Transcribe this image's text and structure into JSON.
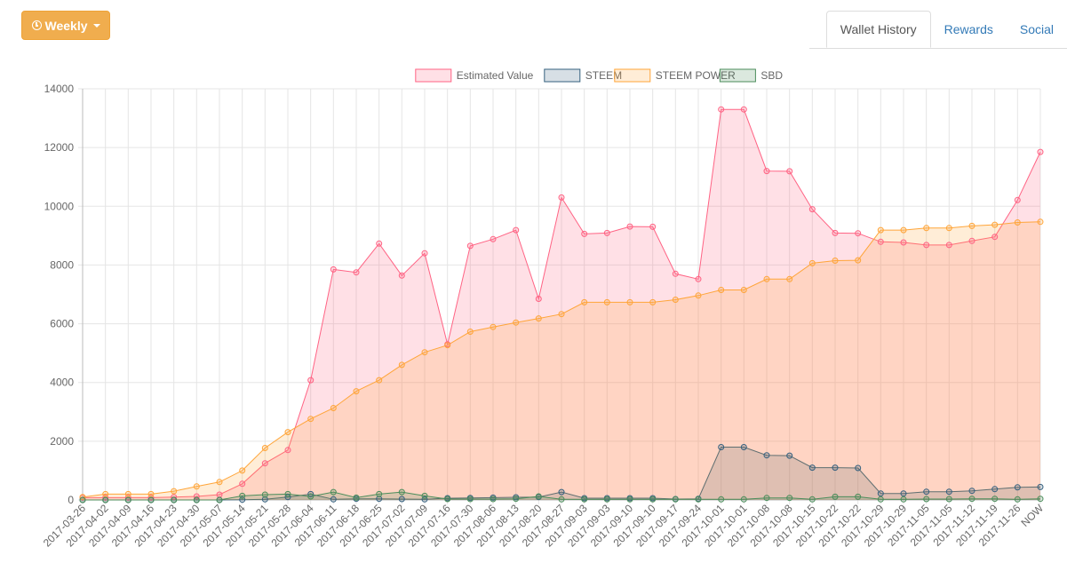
{
  "toolbar": {
    "period_label": "Weekly"
  },
  "tabs": [
    {
      "label": "Wallet History",
      "active": true
    },
    {
      "label": "Rewards",
      "active": false
    },
    {
      "label": "Social",
      "active": false
    }
  ],
  "chart_data": {
    "type": "area",
    "title": "",
    "xlabel": "",
    "ylabel": "",
    "ylim": [
      0,
      14000
    ],
    "yticks": [
      0,
      2000,
      4000,
      6000,
      8000,
      10000,
      12000,
      14000
    ],
    "grid": true,
    "legend_position": "top-center",
    "categories": [
      "2017-03-26",
      "2017-04-02",
      "2017-04-09",
      "2017-04-16",
      "2017-04-23",
      "2017-04-30",
      "2017-05-07",
      "2017-05-14",
      "2017-05-21",
      "2017-05-28",
      "2017-06-04",
      "2017-06-11",
      "2017-06-18",
      "2017-06-25",
      "2017-07-02",
      "2017-07-09",
      "2017-07-16",
      "2017-07-30",
      "2017-08-06",
      "2017-08-13",
      "2017-08-20",
      "2017-08-27",
      "2017-09-03",
      "2017-09-03",
      "2017-09-10",
      "2017-09-10",
      "2017-09-17",
      "2017-09-24",
      "2017-10-01",
      "2017-10-01",
      "2017-10-08",
      "2017-10-08",
      "2017-10-15",
      "2017-10-22",
      "2017-10-22",
      "2017-10-29",
      "2017-10-29",
      "2017-11-05",
      "2017-11-05",
      "2017-11-12",
      "2017-11-19",
      "2017-11-26",
      "NOW"
    ],
    "series": [
      {
        "name": "Estimated Value",
        "stroke": "#ff6384",
        "fill": "rgba(255,99,132,0.2)",
        "values": [
          80,
          80,
          80,
          80,
          100,
          120,
          180,
          550,
          1250,
          1700,
          4080,
          7850,
          7750,
          8730,
          7640,
          8400,
          5300,
          8650,
          8880,
          9190,
          6850,
          10300,
          9060,
          9090,
          9310,
          9300,
          7700,
          7520,
          13300,
          13300,
          11200,
          11190,
          9900,
          9090,
          9080,
          8790,
          8770,
          8680,
          8680,
          8820,
          8960,
          10210,
          11850
        ]
      },
      {
        "name": "STEEM",
        "stroke": "#36617f",
        "fill": "rgba(54,97,127,0.2)",
        "values": [
          0,
          0,
          0,
          0,
          0,
          0,
          0,
          10,
          20,
          100,
          200,
          20,
          40,
          40,
          30,
          20,
          60,
          70,
          80,
          90,
          100,
          270,
          60,
          60,
          60,
          60,
          30,
          40,
          1800,
          1800,
          1520,
          1510,
          1100,
          1100,
          1090,
          220,
          220,
          280,
          280,
          310,
          370,
          430,
          440
        ]
      },
      {
        "name": "STEEM POWER",
        "stroke": "#ffa539",
        "fill": "rgba(255,165,57,0.2)",
        "values": [
          100,
          200,
          200,
          200,
          300,
          460,
          610,
          1000,
          1770,
          2310,
          2760,
          3130,
          3700,
          4080,
          4600,
          5030,
          5270,
          5730,
          5890,
          6040,
          6180,
          6330,
          6730,
          6730,
          6730,
          6730,
          6820,
          6960,
          7150,
          7150,
          7520,
          7520,
          8060,
          8150,
          8160,
          9190,
          9190,
          9260,
          9260,
          9330,
          9370,
          9450,
          9470
        ]
      },
      {
        "name": "SBD",
        "stroke": "#4b8d5b",
        "fill": "rgba(75,141,91,0.2)",
        "values": [
          0,
          0,
          0,
          0,
          0,
          0,
          0,
          140,
          180,
          200,
          120,
          270,
          80,
          200,
          270,
          140,
          30,
          30,
          30,
          40,
          120,
          20,
          20,
          20,
          20,
          20,
          20,
          20,
          20,
          20,
          70,
          70,
          20,
          110,
          110,
          20,
          20,
          30,
          30,
          40,
          40,
          20,
          40
        ]
      }
    ]
  }
}
